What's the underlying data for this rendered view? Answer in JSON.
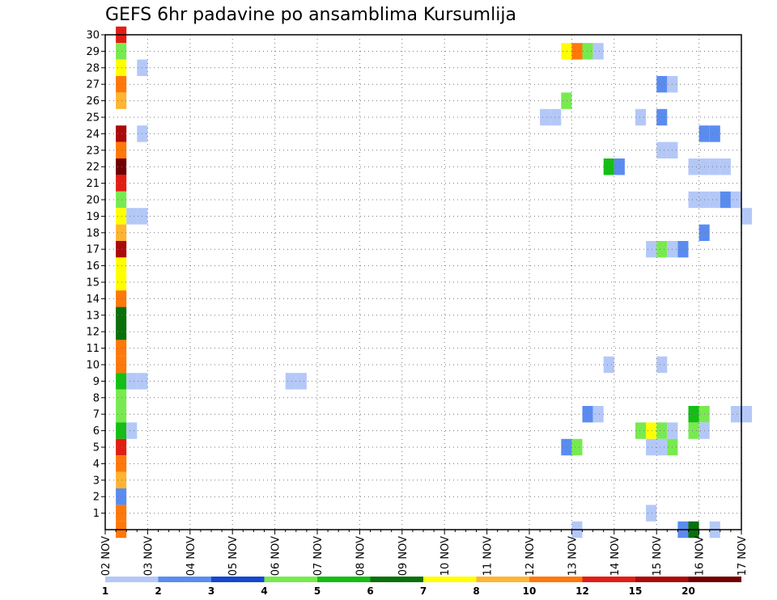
{
  "chart_data": {
    "type": "heatmap",
    "title": "GEFS 6hr padavine po ansamblima Kursumlija",
    "xlabel": "",
    "ylabel": "",
    "x_tick_labels": [
      "02 NOV",
      "03 NOV",
      "04 NOV",
      "05 NOV",
      "06 NOV",
      "07 NOV",
      "08 NOV",
      "09 NOV",
      "10 NOV",
      "11 NOV",
      "12 NOV",
      "13 NOV",
      "14 NOV",
      "15 NOV",
      "16 NOV",
      "17 NOV"
    ],
    "x_range_days": [
      0,
      15
    ],
    "y_tick_labels": [
      "1",
      "2",
      "3",
      "4",
      "5",
      "6",
      "7",
      "8",
      "9",
      "10",
      "11",
      "12",
      "13",
      "14",
      "15",
      "16",
      "17",
      "18",
      "19",
      "20",
      "21",
      "22",
      "23",
      "24",
      "25",
      "26",
      "27",
      "28",
      "29",
      "30"
    ],
    "y_range": [
      0,
      30
    ],
    "grid": true,
    "legend_position": "bottom",
    "legend": {
      "labels": [
        "1",
        "2",
        "3",
        "4",
        "5",
        "6",
        "7",
        "8",
        "10",
        "12",
        "15",
        "20"
      ],
      "colors": [
        "#b4c8f8",
        "#5a8cf0",
        "#1446d2",
        "#78ea50",
        "#14be14",
        "#0a700a",
        "#ffff00",
        "#ffb432",
        "#ff780a",
        "#e11e14",
        "#aa0a0a",
        "#6e0000"
      ]
    },
    "cells": [
      {
        "m": 30,
        "x": 0.25,
        "v": 12
      },
      {
        "m": 29,
        "x": 0.25,
        "v": 4
      },
      {
        "m": 28,
        "x": 0.25,
        "v": 7
      },
      {
        "m": 27,
        "x": 0.25,
        "v": 10
      },
      {
        "m": 26,
        "x": 0.25,
        "v": 8
      },
      {
        "m": 24,
        "x": 0.25,
        "v": 15
      },
      {
        "m": 23,
        "x": 0.25,
        "v": 10
      },
      {
        "m": 22,
        "x": 0.25,
        "v": 20
      },
      {
        "m": 21,
        "x": 0.25,
        "v": 12
      },
      {
        "m": 20,
        "x": 0.25,
        "v": 4
      },
      {
        "m": 19,
        "x": 0.25,
        "v": 7
      },
      {
        "m": 18,
        "x": 0.25,
        "v": 8
      },
      {
        "m": 17,
        "x": 0.25,
        "v": 15
      },
      {
        "m": 16,
        "x": 0.25,
        "v": 7
      },
      {
        "m": 15,
        "x": 0.25,
        "v": 7
      },
      {
        "m": 14,
        "x": 0.25,
        "v": 10
      },
      {
        "m": 13,
        "x": 0.25,
        "v": 6
      },
      {
        "m": 12,
        "x": 0.25,
        "v": 6
      },
      {
        "m": 11,
        "x": 0.25,
        "v": 10
      },
      {
        "m": 10,
        "x": 0.25,
        "v": 10
      },
      {
        "m": 9,
        "x": 0.25,
        "v": 5
      },
      {
        "m": 8,
        "x": 0.25,
        "v": 4
      },
      {
        "m": 7,
        "x": 0.25,
        "v": 4
      },
      {
        "m": 6,
        "x": 0.25,
        "v": 5
      },
      {
        "m": 5,
        "x": 0.25,
        "v": 12
      },
      {
        "m": 4,
        "x": 0.25,
        "v": 10
      },
      {
        "m": 3,
        "x": 0.25,
        "v": 8
      },
      {
        "m": 2,
        "x": 0.25,
        "v": 2
      },
      {
        "m": 1,
        "x": 0.25,
        "v": 10
      },
      {
        "m": 0,
        "x": 0.25,
        "v": 10
      },
      {
        "m": 28,
        "x": 0.75,
        "v": 1
      },
      {
        "m": 24,
        "x": 0.75,
        "v": 1
      },
      {
        "m": 19,
        "x": 0.5,
        "v": 1
      },
      {
        "m": 19,
        "x": 0.75,
        "v": 1
      },
      {
        "m": 9,
        "x": 0.5,
        "v": 1
      },
      {
        "m": 9,
        "x": 0.75,
        "v": 1
      },
      {
        "m": 6,
        "x": 0.5,
        "v": 1
      },
      {
        "m": 9,
        "x": 4.25,
        "v": 1
      },
      {
        "m": 9,
        "x": 4.5,
        "v": 1
      },
      {
        "m": 29,
        "x": 10.75,
        "v": 7
      },
      {
        "m": 29,
        "x": 11.0,
        "v": 10
      },
      {
        "m": 29,
        "x": 11.25,
        "v": 4
      },
      {
        "m": 29,
        "x": 11.5,
        "v": 1
      },
      {
        "m": 26,
        "x": 10.75,
        "v": 4
      },
      {
        "m": 25,
        "x": 10.25,
        "v": 1
      },
      {
        "m": 25,
        "x": 10.5,
        "v": 1
      },
      {
        "m": 22,
        "x": 11.75,
        "v": 5
      },
      {
        "m": 22,
        "x": 12.0,
        "v": 2
      },
      {
        "m": 10,
        "x": 11.75,
        "v": 1
      },
      {
        "m": 7,
        "x": 11.25,
        "v": 2
      },
      {
        "m": 7,
        "x": 11.5,
        "v": 1
      },
      {
        "m": 5,
        "x": 10.75,
        "v": 2
      },
      {
        "m": 5,
        "x": 11.0,
        "v": 4
      },
      {
        "m": 0,
        "x": 11.0,
        "v": 1
      },
      {
        "m": 27,
        "x": 13.0,
        "v": 2
      },
      {
        "m": 27,
        "x": 13.25,
        "v": 1
      },
      {
        "m": 25,
        "x": 12.5,
        "v": 1
      },
      {
        "m": 25,
        "x": 13.0,
        "v": 2
      },
      {
        "m": 24,
        "x": 14.0,
        "v": 2
      },
      {
        "m": 24,
        "x": 14.25,
        "v": 2
      },
      {
        "m": 23,
        "x": 13.0,
        "v": 1
      },
      {
        "m": 23,
        "x": 13.25,
        "v": 1
      },
      {
        "m": 22,
        "x": 13.75,
        "v": 1
      },
      {
        "m": 22,
        "x": 14.0,
        "v": 1
      },
      {
        "m": 22,
        "x": 14.25,
        "v": 1
      },
      {
        "m": 22,
        "x": 14.5,
        "v": 1
      },
      {
        "m": 20,
        "x": 13.75,
        "v": 1
      },
      {
        "m": 20,
        "x": 14.0,
        "v": 1
      },
      {
        "m": 20,
        "x": 14.25,
        "v": 1
      },
      {
        "m": 20,
        "x": 14.5,
        "v": 2
      },
      {
        "m": 20,
        "x": 14.75,
        "v": 1
      },
      {
        "m": 19,
        "x": 15.0,
        "v": 1
      },
      {
        "m": 18,
        "x": 14.0,
        "v": 2
      },
      {
        "m": 17,
        "x": 12.75,
        "v": 1
      },
      {
        "m": 17,
        "x": 13.0,
        "v": 4
      },
      {
        "m": 17,
        "x": 13.25,
        "v": 1
      },
      {
        "m": 17,
        "x": 13.5,
        "v": 2
      },
      {
        "m": 10,
        "x": 13.0,
        "v": 1
      },
      {
        "m": 7,
        "x": 13.75,
        "v": 5
      },
      {
        "m": 7,
        "x": 14.0,
        "v": 4
      },
      {
        "m": 7,
        "x": 14.75,
        "v": 1
      },
      {
        "m": 7,
        "x": 15.0,
        "v": 1
      },
      {
        "m": 6,
        "x": 12.5,
        "v": 4
      },
      {
        "m": 6,
        "x": 12.75,
        "v": 7
      },
      {
        "m": 6,
        "x": 13.0,
        "v": 4
      },
      {
        "m": 6,
        "x": 13.25,
        "v": 1
      },
      {
        "m": 6,
        "x": 13.75,
        "v": 4
      },
      {
        "m": 6,
        "x": 14.0,
        "v": 1
      },
      {
        "m": 5,
        "x": 12.75,
        "v": 1
      },
      {
        "m": 5,
        "x": 13.0,
        "v": 1
      },
      {
        "m": 5,
        "x": 13.25,
        "v": 4
      },
      {
        "m": 1,
        "x": 12.75,
        "v": 1
      },
      {
        "m": 0,
        "x": 13.5,
        "v": 2
      },
      {
        "m": 0,
        "x": 13.75,
        "v": 6
      },
      {
        "m": 0,
        "x": 14.25,
        "v": 1
      }
    ]
  }
}
